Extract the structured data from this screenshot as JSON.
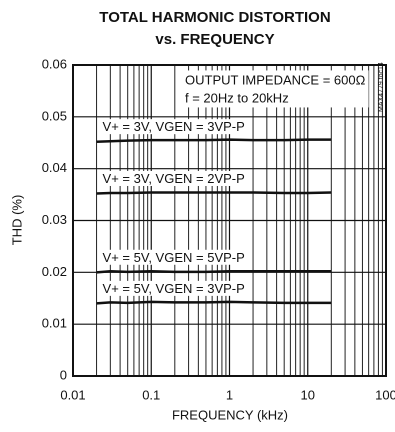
{
  "chart_data": {
    "type": "line",
    "title": "TOTAL HARMONIC DISTORTION",
    "subtitle": "vs. FREQUENCY",
    "x_label": "FREQUENCY (kHz)",
    "y_label": "THD (%)",
    "annotations": [
      "OUTPUT IMPEDANCE = 600Ω",
      "f = 20Hz to 20kHz",
      "MAX4779 toc14"
    ],
    "x": [
      0.02,
      0.03,
      0.05,
      0.1,
      0.2,
      0.5,
      1,
      2,
      5,
      10,
      20
    ],
    "series": [
      {
        "name": "V+ = 3V, VGEN = 3VP-P",
        "color": "#111111",
        "values": [
          0.0452,
          0.0453,
          0.0454,
          0.0455,
          0.0455,
          0.0455,
          0.0456,
          0.0455,
          0.0455,
          0.0456,
          0.0456
        ]
      },
      {
        "name": "V+ = 3V, VGEN = 2VP-P",
        "color": "#111111",
        "values": [
          0.0352,
          0.0353,
          0.0353,
          0.0354,
          0.0354,
          0.0354,
          0.0354,
          0.0354,
          0.0353,
          0.0353,
          0.0354
        ]
      },
      {
        "name": "V+ = 5V, VGEN = 5VP-P",
        "color": "#111111",
        "values": [
          0.02,
          0.0202,
          0.0201,
          0.0202,
          0.0201,
          0.0201,
          0.0202,
          0.0202,
          0.0202,
          0.0202,
          0.0202
        ]
      },
      {
        "name": "V+ = 5V, VGEN = 3VP-P",
        "color": "#111111",
        "values": [
          0.014,
          0.0142,
          0.0141,
          0.0143,
          0.0142,
          0.0142,
          0.0143,
          0.0142,
          0.0141,
          0.0141,
          0.0141
        ]
      }
    ],
    "xlim": [
      0.01,
      100
    ],
    "xticks": [
      0.01,
      0.1,
      1,
      10,
      100
    ],
    "x_log": true,
    "ylim": [
      0,
      0.06
    ],
    "yticks": [
      0,
      0.01,
      0.02,
      0.03,
      0.04,
      0.05,
      0.06
    ],
    "grid": true
  }
}
